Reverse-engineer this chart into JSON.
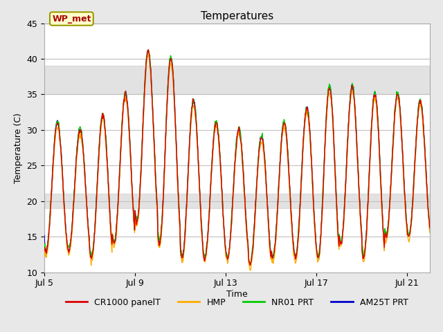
{
  "title": "Temperatures",
  "xlabel": "Time",
  "ylabel": "Temperature (C)",
  "ylim": [
    10,
    45
  ],
  "x_ticks_labels": [
    "Jul 5",
    "Jul 9",
    "Jul 13",
    "Jul 17",
    "Jul 21"
  ],
  "x_ticks_positions": [
    0,
    4,
    8,
    12,
    16
  ],
  "shaded_band_upper": [
    35,
    39
  ],
  "shaded_band_lower": [
    19,
    21
  ],
  "annotation_label": "WP_met",
  "series_colors": {
    "CR1000 panelT": "#dd0000",
    "HMP": "#ffaa00",
    "NR01 PRT": "#00cc00",
    "AM25T PRT": "#0000cc"
  },
  "background_color": "#e8e8e8",
  "plot_bg": "#ffffff",
  "title_fontsize": 11,
  "axis_fontsize": 9,
  "legend_fontsize": 9,
  "day_peaks": [
    31,
    30,
    32,
    35,
    41,
    40,
    34,
    31,
    30,
    29,
    31,
    33,
    36,
    36,
    35,
    35,
    34
  ],
  "day_troughs": [
    13,
    13,
    12,
    14,
    17,
    14,
    12,
    12,
    12,
    11,
    12,
    12,
    12,
    14,
    12,
    15,
    15
  ]
}
